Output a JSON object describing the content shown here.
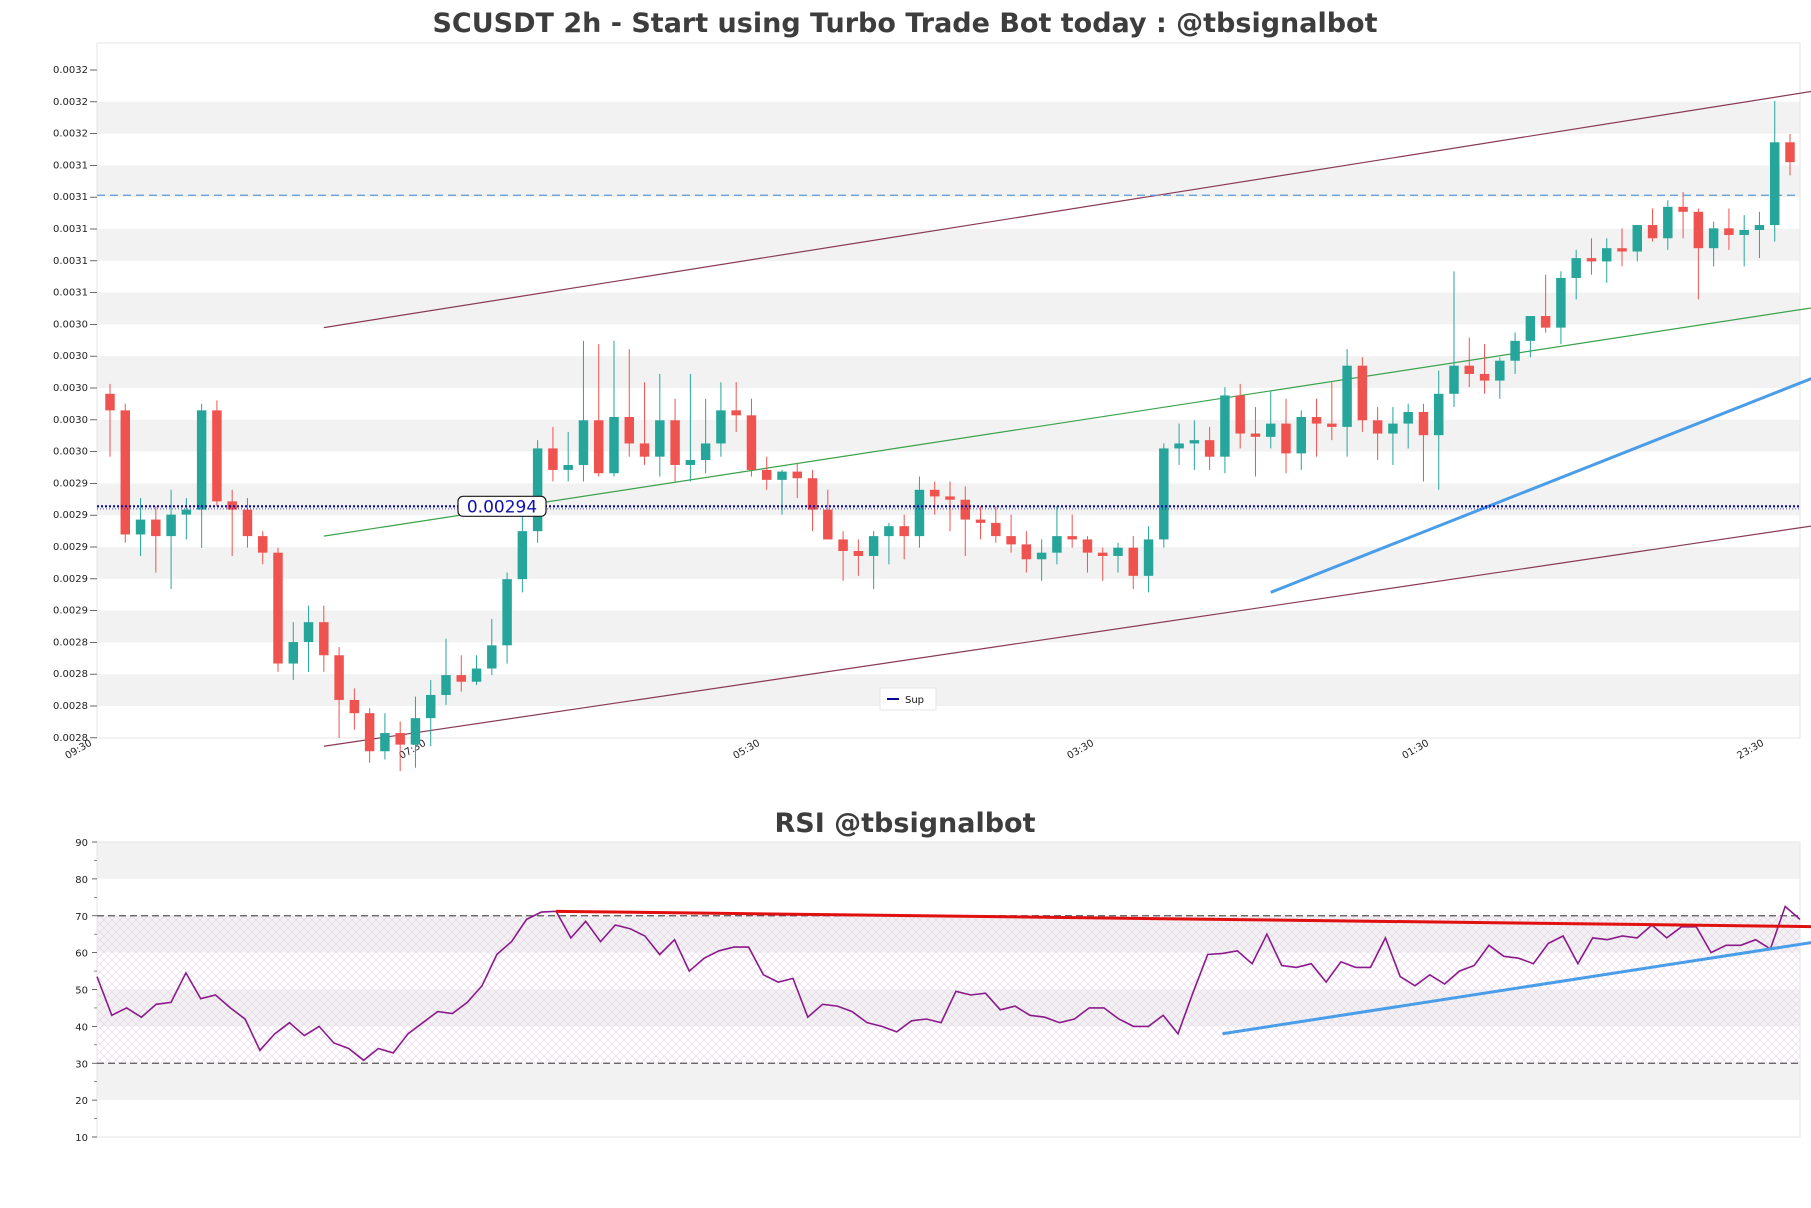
{
  "chart_data": [
    {
      "type": "candlestick",
      "title": "SCUSDT 2h - Start using Turbo Trade Bot today : @tbsignalbot",
      "ylim": [
        0.0028,
        0.00322
      ],
      "y_tick_labels": [
        "0.0032",
        "0.0032",
        "0.0032",
        "0.0031",
        "0.0031",
        "0.0031",
        "0.0031",
        "0.0031",
        "0.0030",
        "0.0030",
        "0.0030",
        "0.0030",
        "0.0030",
        "0.0029",
        "0.0029",
        "0.0029",
        "0.0029",
        "0.0029",
        "0.0028",
        "0.0028",
        "0.0028",
        "0.0028"
      ],
      "x_tick_labels": [
        "09:30",
        "07:30",
        "05:30",
        "03:30",
        "01:30",
        "23:30"
      ],
      "grid": "horizontal bands",
      "legend": {
        "position": "bottom-center",
        "entries": [
          "Sup"
        ]
      },
      "support_price_label": "0.00294",
      "support_level": 0.00294,
      "resistance_dashed_level": 0.003128,
      "colors": {
        "up": "#26a69a",
        "down": "#ef5350",
        "support": "#0a0a9a",
        "dashed": "#5b9bd5",
        "channel": "#8a3a55",
        "mid": "#3aa34a",
        "trend": "#4a9de8"
      },
      "channel": {
        "upper": [
          [
            14,
            0.003048
          ],
          [
            115,
            0.003196
          ]
        ],
        "lower": [
          [
            14,
            0.002795
          ],
          [
            115,
            0.002933
          ]
        ],
        "middle": [
          [
            14,
            0.002922
          ],
          [
            115,
            0.003065
          ]
        ],
        "trend_up": [
          [
            76,
            0.002888
          ],
          [
            116,
            0.003034
          ]
        ]
      },
      "candles": [
        [
          0.003008,
          0.003014,
          0.00297,
          0.002998
        ],
        [
          0.002998,
          0.003002,
          0.002918,
          0.002923
        ],
        [
          0.002923,
          0.002945,
          0.00291,
          0.002932
        ],
        [
          0.002932,
          0.00294,
          0.0029,
          0.002922
        ],
        [
          0.002922,
          0.00295,
          0.00289,
          0.002935
        ],
        [
          0.002935,
          0.002945,
          0.00292,
          0.002938
        ],
        [
          0.002938,
          0.003002,
          0.002915,
          0.002998
        ],
        [
          0.002998,
          0.003004,
          0.00294,
          0.002943
        ],
        [
          0.002943,
          0.00295,
          0.00291,
          0.002938
        ],
        [
          0.002938,
          0.002945,
          0.002915,
          0.002922
        ],
        [
          0.002922,
          0.002925,
          0.002905,
          0.002912
        ],
        [
          0.002912,
          0.002915,
          0.00284,
          0.002845
        ],
        [
          0.002845,
          0.00287,
          0.002835,
          0.002858
        ],
        [
          0.002858,
          0.00288,
          0.00284,
          0.00287
        ],
        [
          0.00287,
          0.00288,
          0.00284,
          0.00285
        ],
        [
          0.00285,
          0.002855,
          0.0028,
          0.002823
        ],
        [
          0.002823,
          0.00283,
          0.002805,
          0.002815
        ],
        [
          0.002815,
          0.002818,
          0.002785,
          0.002792
        ],
        [
          0.002792,
          0.002815,
          0.002787,
          0.002803
        ],
        [
          0.002803,
          0.00281,
          0.00278,
          0.002796
        ],
        [
          0.002796,
          0.002825,
          0.002782,
          0.002812
        ],
        [
          0.002812,
          0.002835,
          0.002795,
          0.002826
        ],
        [
          0.002826,
          0.00286,
          0.00282,
          0.002838
        ],
        [
          0.002838,
          0.00285,
          0.002828,
          0.002834
        ],
        [
          0.002834,
          0.00285,
          0.002832,
          0.002842
        ],
        [
          0.002842,
          0.002872,
          0.002838,
          0.002856
        ],
        [
          0.002856,
          0.0029,
          0.002845,
          0.002896
        ],
        [
          0.002896,
          0.002935,
          0.002888,
          0.002925
        ],
        [
          0.002925,
          0.00298,
          0.002918,
          0.002975
        ],
        [
          0.002975,
          0.002988,
          0.002955,
          0.002962
        ],
        [
          0.002962,
          0.002985,
          0.002955,
          0.002965
        ],
        [
          0.002965,
          0.00304,
          0.002955,
          0.002992
        ],
        [
          0.002992,
          0.003038,
          0.002958,
          0.00296
        ],
        [
          0.00296,
          0.00304,
          0.002958,
          0.002994
        ],
        [
          0.002994,
          0.003035,
          0.00297,
          0.002978
        ],
        [
          0.002978,
          0.003015,
          0.002965,
          0.00297
        ],
        [
          0.00297,
          0.00302,
          0.002958,
          0.002992
        ],
        [
          0.002992,
          0.003005,
          0.002955,
          0.002965
        ],
        [
          0.002965,
          0.00302,
          0.002955,
          0.002968
        ],
        [
          0.002968,
          0.003005,
          0.00296,
          0.002978
        ],
        [
          0.002978,
          0.003015,
          0.00297,
          0.002998
        ],
        [
          0.002998,
          0.003015,
          0.002985,
          0.002995
        ],
        [
          0.002995,
          0.003005,
          0.002958,
          0.002962
        ],
        [
          0.002962,
          0.00297,
          0.00295,
          0.002956
        ],
        [
          0.002956,
          0.002962,
          0.002935,
          0.002961
        ],
        [
          0.002961,
          0.002966,
          0.002945,
          0.002957
        ],
        [
          0.002957,
          0.002962,
          0.002925,
          0.002938
        ],
        [
          0.002938,
          0.00295,
          0.002922,
          0.00292
        ],
        [
          0.00292,
          0.002925,
          0.002895,
          0.002913
        ],
        [
          0.002913,
          0.00292,
          0.002898,
          0.00291
        ],
        [
          0.00291,
          0.002925,
          0.00289,
          0.002922
        ],
        [
          0.002922,
          0.00293,
          0.002905,
          0.002928
        ],
        [
          0.002928,
          0.002935,
          0.002908,
          0.002922
        ],
        [
          0.002922,
          0.002958,
          0.002915,
          0.00295
        ],
        [
          0.00295,
          0.002955,
          0.002935,
          0.002946
        ],
        [
          0.002946,
          0.002955,
          0.002925,
          0.002944
        ],
        [
          0.002944,
          0.002952,
          0.00291,
          0.002932
        ],
        [
          0.002932,
          0.00294,
          0.00292,
          0.00293
        ],
        [
          0.00293,
          0.00294,
          0.002918,
          0.002922
        ],
        [
          0.002922,
          0.002935,
          0.002912,
          0.002917
        ],
        [
          0.002917,
          0.002925,
          0.0029,
          0.002908
        ],
        [
          0.002908,
          0.00292,
          0.002895,
          0.002912
        ],
        [
          0.002912,
          0.00294,
          0.002905,
          0.002922
        ],
        [
          0.002922,
          0.002935,
          0.002915,
          0.00292
        ],
        [
          0.00292,
          0.002922,
          0.0029,
          0.002912
        ],
        [
          0.002912,
          0.002915,
          0.002895,
          0.00291
        ],
        [
          0.00291,
          0.002918,
          0.0029,
          0.002915
        ],
        [
          0.002915,
          0.002922,
          0.00289,
          0.002898
        ],
        [
          0.002898,
          0.002928,
          0.002888,
          0.00292
        ],
        [
          0.00292,
          0.002978,
          0.002915,
          0.002975
        ],
        [
          0.002975,
          0.00299,
          0.002965,
          0.002978
        ],
        [
          0.002978,
          0.002992,
          0.002962,
          0.00298
        ],
        [
          0.00298,
          0.002988,
          0.002962,
          0.00297
        ],
        [
          0.00297,
          0.003012,
          0.00296,
          0.003007
        ],
        [
          0.003007,
          0.003014,
          0.002975,
          0.002984
        ],
        [
          0.002984,
          0.003,
          0.002958,
          0.002982
        ],
        [
          0.002982,
          0.00301,
          0.002975,
          0.00299
        ],
        [
          0.00299,
          0.003005,
          0.00296,
          0.002972
        ],
        [
          0.002972,
          0.002998,
          0.002962,
          0.002994
        ],
        [
          0.002994,
          0.003005,
          0.00297,
          0.00299
        ],
        [
          0.00299,
          0.003015,
          0.00298,
          0.002988
        ],
        [
          0.002988,
          0.003035,
          0.00297,
          0.003025
        ],
        [
          0.003025,
          0.00303,
          0.002985,
          0.002992
        ],
        [
          0.002992,
          0.003,
          0.002968,
          0.002984
        ],
        [
          0.002984,
          0.003,
          0.002965,
          0.00299
        ],
        [
          0.00299,
          0.003002,
          0.002975,
          0.002997
        ],
        [
          0.002997,
          0.003002,
          0.002955,
          0.002983
        ],
        [
          0.002983,
          0.003022,
          0.00295,
          0.003008
        ],
        [
          0.003008,
          0.003082,
          0.003,
          0.003025
        ],
        [
          0.003025,
          0.003042,
          0.003012,
          0.00302
        ],
        [
          0.00302,
          0.003038,
          0.003008,
          0.003016
        ],
        [
          0.003016,
          0.00303,
          0.003005,
          0.003028
        ],
        [
          0.003028,
          0.003045,
          0.00302,
          0.00304
        ],
        [
          0.00304,
          0.003052,
          0.00303,
          0.003055
        ],
        [
          0.003055,
          0.00308,
          0.003045,
          0.003048
        ],
        [
          0.003048,
          0.003082,
          0.003038,
          0.003078
        ],
        [
          0.003078,
          0.003095,
          0.003065,
          0.00309
        ],
        [
          0.00309,
          0.003102,
          0.00308,
          0.003088
        ],
        [
          0.003088,
          0.003102,
          0.003075,
          0.003096
        ],
        [
          0.003096,
          0.003108,
          0.003085,
          0.003094
        ],
        [
          0.003094,
          0.00311,
          0.003088,
          0.00311
        ],
        [
          0.00311,
          0.00312,
          0.0031,
          0.003102
        ],
        [
          0.003102,
          0.003125,
          0.003095,
          0.003121
        ],
        [
          0.003121,
          0.00313,
          0.003102,
          0.003118
        ],
        [
          0.003118,
          0.00312,
          0.003065,
          0.003096
        ],
        [
          0.003096,
          0.003112,
          0.003085,
          0.003108
        ],
        [
          0.003108,
          0.00312,
          0.003095,
          0.003104
        ],
        [
          0.003104,
          0.003116,
          0.003085,
          0.003107
        ],
        [
          0.003107,
          0.003118,
          0.00309,
          0.00311
        ],
        [
          0.00311,
          0.003185,
          0.0031,
          0.00316
        ],
        [
          0.00316,
          0.003165,
          0.00314,
          0.003148
        ]
      ]
    },
    {
      "type": "line",
      "title": "RSI @tbsignalbot",
      "ylim": [
        10,
        90
      ],
      "y_tick_labels": [
        "90",
        "80",
        "70",
        "60",
        "50",
        "40",
        "30",
        "20",
        "10"
      ],
      "reference_lines": [
        70,
        30
      ],
      "colors": {
        "rsi": "#8b1a8b",
        "resistance": "#e01010",
        "support": "#4a9de8"
      },
      "trendlines": {
        "resistance": [
          [
            31,
            71.2
          ],
          [
            117,
            67
          ]
        ],
        "support": [
          [
            76,
            38
          ],
          [
            117,
            63.5
          ]
        ]
      },
      "series": [
        {
          "values": [
            53.5,
            43,
            45,
            42.5,
            46,
            46.5,
            54.5,
            47.5,
            48.5,
            45,
            42,
            33.5,
            38,
            41,
            37.5,
            40,
            35.5,
            34,
            30.8,
            34,
            32.8,
            38,
            41,
            44,
            43.5,
            46.5,
            51,
            59.5,
            63,
            69,
            71,
            71.2,
            64,
            68.5,
            63,
            67.5,
            66.5,
            64.5,
            59.5,
            63.5,
            55,
            58.5,
            60.5,
            61.5,
            61.5,
            54,
            52,
            53,
            42.5,
            46,
            45.5,
            44,
            41,
            40,
            38.5,
            41.5,
            42,
            41,
            49.5,
            48.5,
            49,
            44.5,
            45.5,
            43,
            42.5,
            41,
            42,
            45,
            45,
            42,
            40,
            40,
            43,
            38,
            49,
            59.5,
            59.8,
            60.5,
            57,
            65,
            56.5,
            56,
            57,
            52,
            57.5,
            56,
            56,
            64,
            53.5,
            51,
            54,
            51.5,
            55,
            56.5,
            62,
            59,
            58.5,
            57,
            62.5,
            64.5,
            57,
            64,
            63.5,
            64.5,
            64,
            67.5,
            64,
            67,
            67,
            60,
            62,
            62,
            63.5,
            61,
            72.5,
            69
          ]
        }
      ]
    }
  ]
}
